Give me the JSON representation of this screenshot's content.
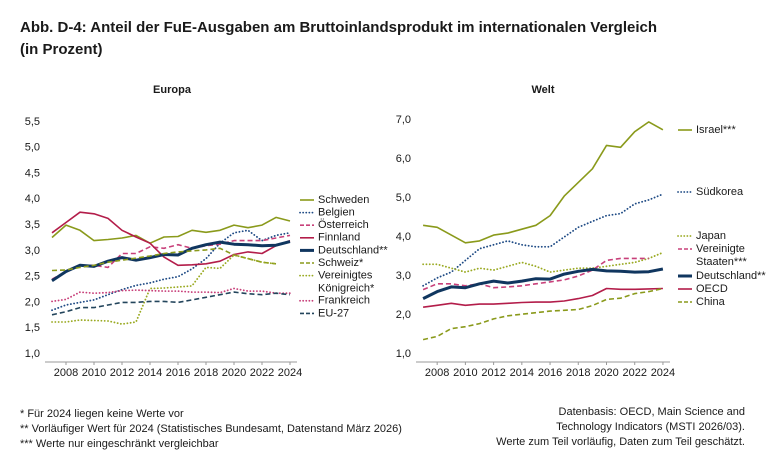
{
  "title": [
    "Abb. D-4: Anteil der FuE-Ausgaben am Bruttoinlandsprodukt im internationalen Vergleich",
    "(in Prozent)"
  ],
  "chart_data": [
    {
      "type": "line",
      "title": "Europa",
      "x": [
        2007,
        2008,
        2009,
        2010,
        2011,
        2012,
        2013,
        2014,
        2015,
        2016,
        2017,
        2018,
        2019,
        2020,
        2021,
        2022,
        2023,
        2024
      ],
      "xlim": [
        2006.5,
        2024.5
      ],
      "xticks": [
        2008,
        2010,
        2012,
        2014,
        2016,
        2018,
        2020,
        2022,
        2024
      ],
      "ylim": [
        1,
        5.5
      ],
      "yticks": [
        {
          "value": 1,
          "label": "1,0"
        },
        {
          "value": 1.5,
          "label": "1,5"
        },
        {
          "value": 2,
          "label": "2,0"
        },
        {
          "value": 2.5,
          "label": "2,5"
        },
        {
          "value": 3,
          "label": "3,0"
        },
        {
          "value": 3.5,
          "label": "3,5"
        },
        {
          "value": 4,
          "label": "4,0"
        },
        {
          "value": 4.5,
          "label": "4,5"
        },
        {
          "value": 5,
          "label": "5,0"
        },
        {
          "value": 5.5,
          "label": "5,5"
        }
      ],
      "grid": false,
      "series": [
        {
          "name": "Schweden",
          "color": "#8a9a1b",
          "linestyle": "solid",
          "values": [
            3.26,
            3.5,
            3.4,
            3.2,
            3.22,
            3.25,
            3.3,
            3.15,
            3.27,
            3.28,
            3.4,
            3.36,
            3.4,
            3.5,
            3.45,
            3.5,
            3.65,
            3.58
          ]
        },
        {
          "name": "Belgien",
          "color": "#1f4b85",
          "linestyle": "dotted",
          "values": [
            1.85,
            1.95,
            2.0,
            2.05,
            2.15,
            2.25,
            2.33,
            2.38,
            2.45,
            2.5,
            2.65,
            2.85,
            3.15,
            3.35,
            3.4,
            3.2,
            3.3,
            3.35
          ]
        },
        {
          "name": "Österreich",
          "color": "#c8407a",
          "linestyle": "dashed",
          "values": [
            2.45,
            2.6,
            2.72,
            2.72,
            2.68,
            2.95,
            2.95,
            3.08,
            3.05,
            3.12,
            3.05,
            3.1,
            3.13,
            3.2,
            3.2,
            3.2,
            3.25,
            3.3
          ]
        },
        {
          "name": "Finnland",
          "color": "#b31d4a",
          "linestyle": "solid",
          "values": [
            3.35,
            3.55,
            3.75,
            3.72,
            3.63,
            3.4,
            3.27,
            3.15,
            2.88,
            2.72,
            2.73,
            2.75,
            2.8,
            2.93,
            2.98,
            2.95,
            3.1,
            3.2
          ]
        },
        {
          "name": "Deutschland**",
          "color": "#10365f",
          "linestyle": "bold",
          "values": [
            2.42,
            2.6,
            2.72,
            2.7,
            2.8,
            2.87,
            2.82,
            2.87,
            2.93,
            2.92,
            3.05,
            3.12,
            3.17,
            3.13,
            3.12,
            3.1,
            3.11,
            3.18
          ]
        },
        {
          "name": "Schweiz*",
          "color": "#8a9a1b",
          "linestyle": "dashed",
          "values": [
            2.62,
            2.63,
            2.68,
            2.72,
            2.78,
            2.82,
            2.86,
            2.9,
            2.95,
            2.98,
            3.0,
            3.02,
            3.05,
            2.92,
            2.85,
            2.78,
            2.75,
            null
          ]
        },
        {
          "name": "Vereinigtes Königreich*",
          "color": "#9aaa22",
          "linestyle": "dotted",
          "values": [
            1.62,
            1.62,
            1.66,
            1.65,
            1.64,
            1.58,
            1.62,
            2.27,
            2.28,
            2.3,
            2.32,
            2.68,
            2.66,
            2.92,
            2.85,
            2.78,
            2.75,
            null
          ]
        },
        {
          "name": "Frankreich",
          "color": "#c8407a",
          "linestyle": "dotted",
          "values": [
            2.02,
            2.06,
            2.2,
            2.18,
            2.19,
            2.23,
            2.24,
            2.23,
            2.22,
            2.22,
            2.2,
            2.2,
            2.19,
            2.27,
            2.22,
            2.22,
            2.18,
            2.18
          ]
        },
        {
          "name": "EU-27",
          "color": "#23455c",
          "linestyle": "dashed",
          "values": [
            1.76,
            1.82,
            1.9,
            1.9,
            1.95,
            2.0,
            2.0,
            2.02,
            2.02,
            2.0,
            2.05,
            2.1,
            2.15,
            2.2,
            2.17,
            2.15,
            2.18,
            2.15
          ]
        }
      ]
    },
    {
      "type": "line",
      "title": "Welt",
      "x": [
        2007,
        2008,
        2009,
        2010,
        2011,
        2012,
        2013,
        2014,
        2015,
        2016,
        2017,
        2018,
        2019,
        2020,
        2021,
        2022,
        2023,
        2024
      ],
      "xlim": [
        2006.5,
        2024.5
      ],
      "xticks": [
        2008,
        2010,
        2012,
        2014,
        2016,
        2018,
        2020,
        2022,
        2024
      ],
      "ylim": [
        1,
        7
      ],
      "yticks": [
        {
          "value": 1,
          "label": "1,0"
        },
        {
          "value": 2,
          "label": "2,0"
        },
        {
          "value": 3,
          "label": "3,0"
        },
        {
          "value": 4,
          "label": "4,0"
        },
        {
          "value": 5,
          "label": "5,0"
        },
        {
          "value": 6,
          "label": "6,0"
        },
        {
          "value": 7,
          "label": "7,0"
        }
      ],
      "grid": false,
      "series": [
        {
          "name": "Israel***",
          "color": "#8a9a1b",
          "linestyle": "solid",
          "values": [
            4.3,
            4.25,
            4.05,
            3.85,
            3.9,
            4.05,
            4.1,
            4.2,
            4.3,
            4.55,
            5.05,
            5.4,
            5.75,
            6.35,
            6.3,
            6.7,
            6.95,
            6.75
          ]
        },
        {
          "name": "Südkorea",
          "color": "#1f4b85",
          "linestyle": "dotted",
          "values": [
            2.75,
            2.95,
            3.1,
            3.4,
            3.7,
            3.8,
            3.9,
            3.8,
            3.75,
            3.75,
            4.0,
            4.25,
            4.4,
            4.55,
            4.6,
            4.85,
            4.95,
            5.1
          ]
        },
        {
          "name": "Japan",
          "color": "#9aaa22",
          "linestyle": "dotted",
          "values": [
            3.3,
            3.3,
            3.2,
            3.1,
            3.2,
            3.15,
            3.25,
            3.35,
            3.25,
            3.1,
            3.15,
            3.2,
            3.2,
            3.25,
            3.3,
            3.35,
            3.45,
            3.6
          ]
        },
        {
          "name": "Vereinigte Staaten***",
          "color": "#c8407a",
          "linestyle": "dashed",
          "values": [
            2.65,
            2.8,
            2.8,
            2.75,
            2.8,
            2.7,
            2.72,
            2.75,
            2.8,
            2.85,
            2.9,
            3.0,
            3.15,
            3.4,
            3.45,
            3.45,
            3.45,
            null
          ]
        },
        {
          "name": "Deutschland**",
          "color": "#10365f",
          "linestyle": "bold",
          "values": [
            2.42,
            2.6,
            2.72,
            2.7,
            2.8,
            2.87,
            2.82,
            2.87,
            2.93,
            2.92,
            3.05,
            3.12,
            3.17,
            3.13,
            3.12,
            3.1,
            3.11,
            3.18
          ]
        },
        {
          "name": "OECD",
          "color": "#b31d4a",
          "linestyle": "solid",
          "values": [
            2.2,
            2.25,
            2.3,
            2.25,
            2.28,
            2.28,
            2.3,
            2.32,
            2.33,
            2.33,
            2.36,
            2.42,
            2.5,
            2.68,
            2.66,
            2.66,
            2.67,
            2.68
          ]
        },
        {
          "name": "China",
          "color": "#8a9a1b",
          "linestyle": "dashed",
          "values": [
            1.37,
            1.45,
            1.65,
            1.7,
            1.78,
            1.9,
            1.98,
            2.02,
            2.06,
            2.1,
            2.12,
            2.14,
            2.24,
            2.4,
            2.43,
            2.55,
            2.6,
            2.68
          ]
        }
      ]
    }
  ],
  "notes": [
    "* Für 2024 liegen keine Werte vor",
    "** Vorläufiger Wert für 2024 (Statistisches Bundesamt, Datenstand März 2026)",
    "*** Werte nur eingeschränkt vergleichbar"
  ],
  "source": [
    "Datenbasis: OECD, Main Science and",
    "Technology Indicators (MSTI 2026/03).",
    "Werte zum Teil vorläufig, Daten zum Teil geschätzt."
  ]
}
